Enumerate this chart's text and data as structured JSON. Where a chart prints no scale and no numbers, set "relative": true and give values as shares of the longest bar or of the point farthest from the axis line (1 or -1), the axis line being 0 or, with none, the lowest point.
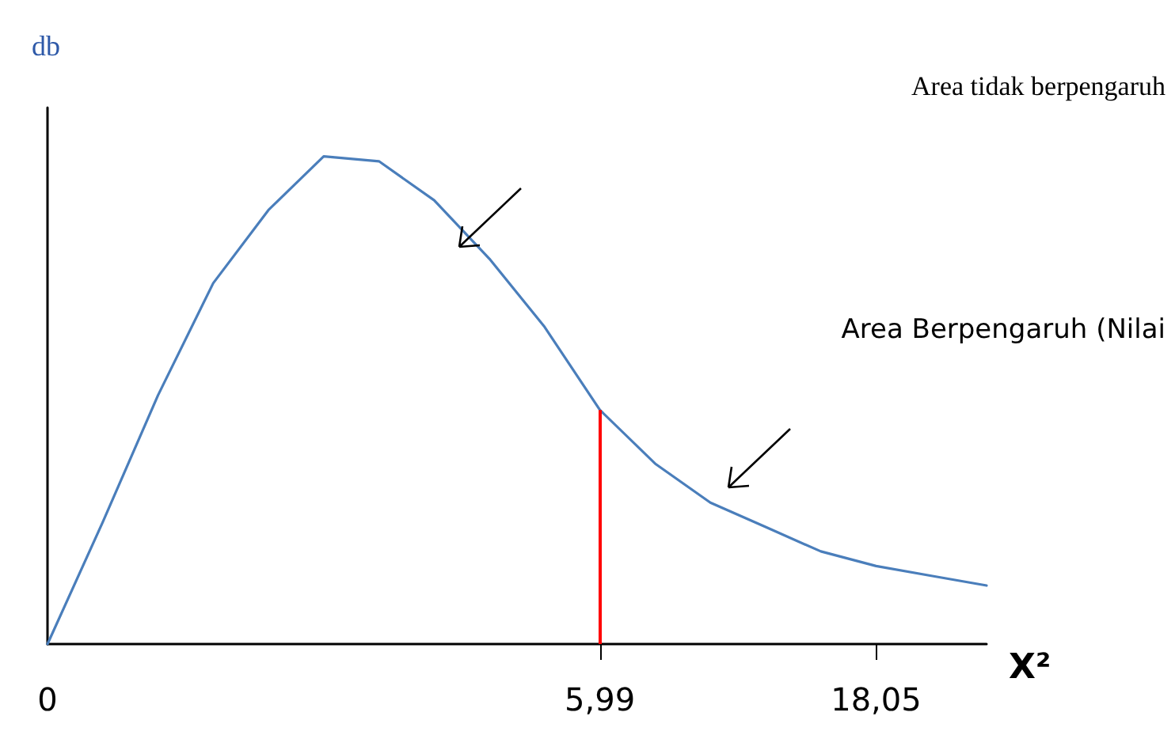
{
  "chart_data": {
    "type": "line",
    "ylabel": "db",
    "xlabel": "X²",
    "relative": true,
    "grid": false,
    "marker": "none",
    "line_style": "solid",
    "categories": [
      "0",
      null,
      null,
      null,
      null,
      null,
      null,
      null,
      null,
      null,
      "5,99",
      null,
      null,
      null,
      null,
      "18,05",
      null,
      null
    ],
    "series": [
      {
        "color": "#4a7ebb",
        "values": [
          0,
          0.25,
          0.51,
          0.74,
          0.89,
          1,
          0.99,
          0.91,
          0.79,
          0.65,
          0.48,
          0.37,
          0.29,
          0.24,
          0.19,
          0.16,
          0.14,
          0.12
        ]
      }
    ],
    "ref_lines": [
      {
        "axis": "x",
        "value": "5,99",
        "color": "#ff0000"
      }
    ],
    "annotations": [
      "Area tidak berpengaruh",
      "Area Berpengaruh (Nilai"
    ]
  }
}
